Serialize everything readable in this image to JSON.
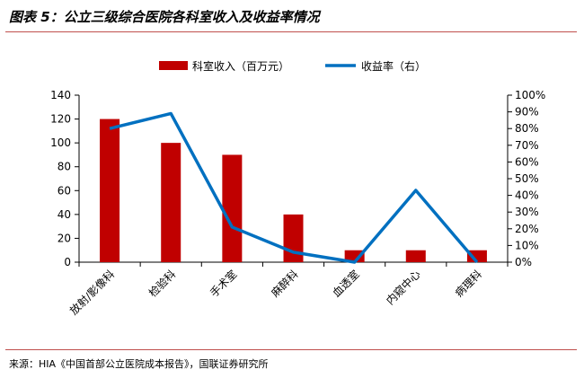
{
  "header": {
    "title": "图表 5：公立三级综合医院各科室收入及收益率情况"
  },
  "footer": {
    "source": "来源：HIA《中国首部公立医院成本报告》，国联证券研究所"
  },
  "colors": {
    "bar": "#c00000",
    "line": "#0070c0",
    "rule": "#c0504d"
  },
  "chart_data": {
    "type": "bar",
    "categories": [
      "放射/影像科",
      "检验科",
      "手术室",
      "麻醉科",
      "血透室",
      "内窥中心",
      "病理科"
    ],
    "series": [
      {
        "name": "科室收入（百万元）",
        "type": "bar",
        "axis": "left",
        "values": [
          120,
          100,
          90,
          40,
          10,
          10,
          10
        ]
      },
      {
        "name": "收益率（右）",
        "type": "line",
        "axis": "right",
        "values": [
          80,
          89,
          21,
          6,
          0,
          43,
          0
        ]
      }
    ],
    "y_left": {
      "min": 0,
      "max": 140,
      "step": 20,
      "ticks": [
        "0",
        "20",
        "40",
        "60",
        "80",
        "100",
        "120",
        "140"
      ]
    },
    "y_right": {
      "min": 0,
      "max": 100,
      "step": 10,
      "ticks": [
        "0%",
        "10%",
        "20%",
        "30%",
        "40%",
        "50%",
        "60%",
        "70%",
        "80%",
        "90%",
        "100%"
      ]
    },
    "legend_position": "top-center",
    "grid": false
  }
}
